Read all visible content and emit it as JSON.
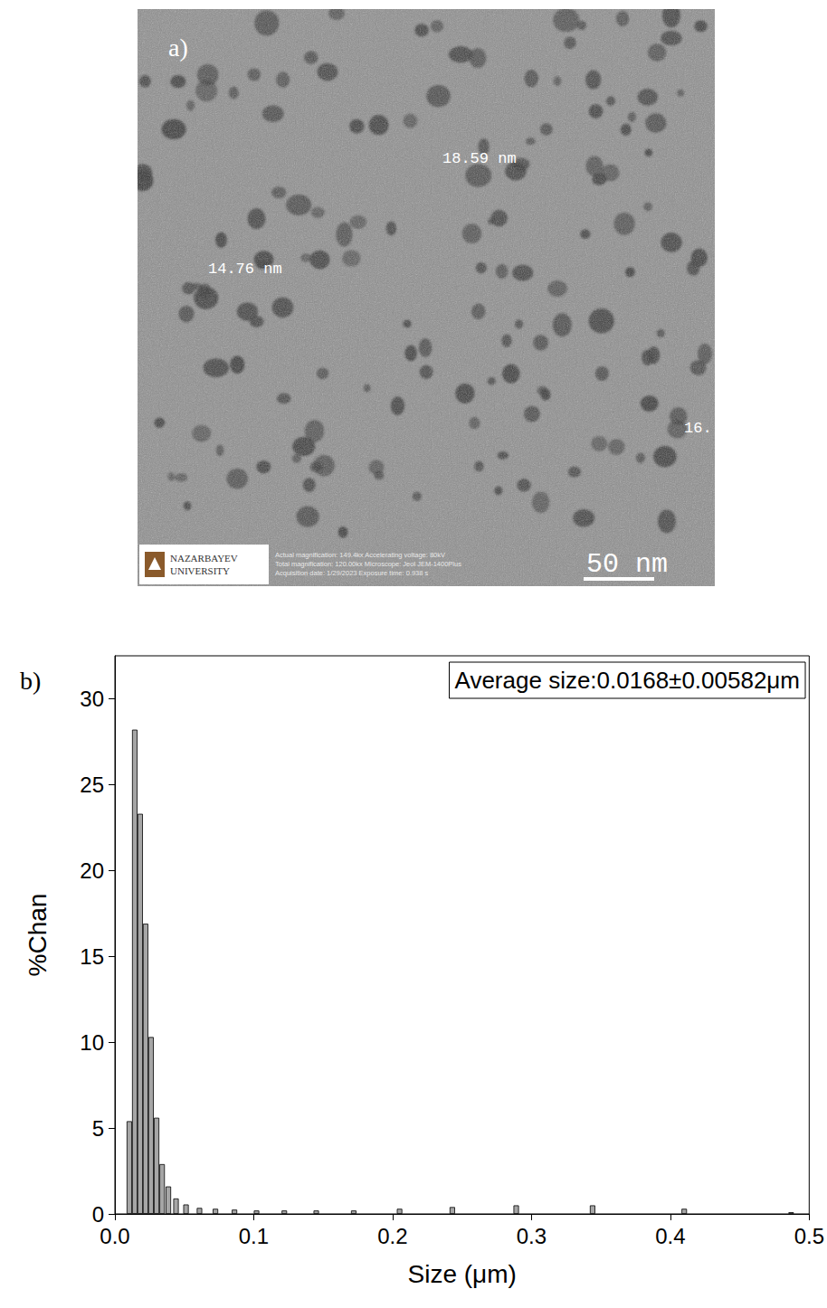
{
  "micrograph": {
    "label": "a)",
    "measurements": [
      "18.59 nm",
      "14.76 nm",
      "16."
    ],
    "scale_bar": "50 nm",
    "logo": [
      "NAZARBAYEV",
      "UNIVERSITY"
    ],
    "metadata": [
      "Actual magnification: 149.4kx Accelerating voltage: 80kV",
      "Total magnification: 120.00kx Microscope: Jeol JEM-1400Plus",
      "Acquisition date: 1/29/2023  Exposure time: 0.938 s"
    ]
  },
  "chart_data": {
    "type": "bar",
    "label": "b)",
    "xlabel": "Size (μm)",
    "ylabel": "%Chan",
    "annotation": "Average size:0.0168±0.00582μm",
    "x": [
      0.0104,
      0.0143,
      0.0182,
      0.0221,
      0.026,
      0.03,
      0.034,
      0.0385,
      0.044,
      0.0512,
      0.0609,
      0.0724,
      0.0861,
      0.102,
      0.122,
      0.145,
      0.172,
      0.205,
      0.243,
      0.289,
      0.344,
      0.41,
      0.487
    ],
    "values": [
      5.4,
      28.2,
      23.3,
      16.9,
      10.3,
      5.6,
      2.9,
      1.6,
      0.9,
      0.55,
      0.35,
      0.3,
      0.25,
      0.2,
      0.2,
      0.2,
      0.2,
      0.3,
      0.4,
      0.5,
      0.5,
      0.3,
      0.1
    ],
    "color": "#a6a6a6",
    "xlim": [
      0,
      0.5
    ],
    "xticks": [
      {
        "value": 0,
        "label": "0.0"
      },
      {
        "value": 0.1,
        "label": "0.1"
      },
      {
        "value": 0.2,
        "label": "0.2"
      },
      {
        "value": 0.3,
        "label": "0.3"
      },
      {
        "value": 0.4,
        "label": "0.4"
      },
      {
        "value": 0.5,
        "label": "0.5"
      }
    ],
    "ylim": [
      0,
      32.5
    ],
    "yticks": [
      0,
      5,
      10,
      15,
      20,
      25,
      30
    ],
    "grid": false
  }
}
